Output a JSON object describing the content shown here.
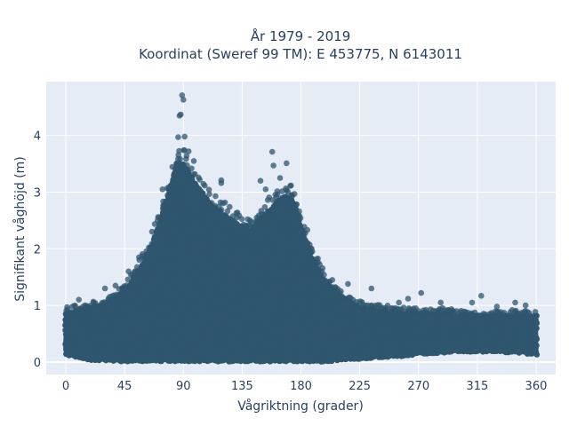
{
  "chart_data": {
    "type": "scatter",
    "title_line1": "År 1979 - 2019",
    "title_line2": "Koordinat (Sweref 99 TM): E 453775, N 6143011",
    "xlabel": "Vågriktning (grader)",
    "ylabel": "Signifikant våghöjd (m)",
    "xlim": [
      -15,
      375
    ],
    "ylim": [
      -0.22,
      4.95
    ],
    "xticks": [
      0,
      45,
      90,
      135,
      180,
      225,
      270,
      315,
      360
    ],
    "yticks": [
      0,
      1,
      2,
      3,
      4
    ],
    "grid": true,
    "marker_color": "#2f566e",
    "plot_background": "#e5ecf6",
    "envelope": {
      "direction": [
        0,
        10,
        20,
        30,
        40,
        50,
        60,
        70,
        80,
        85,
        90,
        95,
        100,
        105,
        110,
        120,
        130,
        140,
        150,
        160,
        165,
        170,
        175,
        180,
        190,
        200,
        210,
        225,
        240,
        255,
        270,
        285,
        300,
        315,
        330,
        345,
        360
      ],
      "lower": [
        0.15,
        0.1,
        0.05,
        0.05,
        0.03,
        0.03,
        0.03,
        0.03,
        0.03,
        0.03,
        0.03,
        0.03,
        0.03,
        0.03,
        0.03,
        0.03,
        0.03,
        0.03,
        0.03,
        0.03,
        0.03,
        0.03,
        0.03,
        0.02,
        0.02,
        0.03,
        0.05,
        0.07,
        0.1,
        0.12,
        0.15,
        0.18,
        0.2,
        0.2,
        0.2,
        0.18,
        0.15
      ],
      "upper": [
        0.85,
        0.9,
        0.95,
        1.0,
        1.15,
        1.4,
        1.75,
        2.3,
        3.1,
        3.5,
        3.5,
        3.3,
        3.1,
        2.95,
        2.8,
        2.6,
        2.45,
        2.3,
        2.55,
        2.75,
        2.9,
        2.9,
        2.8,
        2.4,
        1.75,
        1.35,
        1.15,
        0.95,
        0.9,
        0.85,
        0.85,
        0.85,
        0.8,
        0.8,
        0.8,
        0.8,
        0.8
      ]
    },
    "outliers": [
      {
        "x": 89,
        "y": 4.71
      },
      {
        "x": 90,
        "y": 4.63
      },
      {
        "x": 88,
        "y": 4.37
      },
      {
        "x": 87,
        "y": 4.35
      },
      {
        "x": 86,
        "y": 3.97
      },
      {
        "x": 91,
        "y": 3.98
      },
      {
        "x": 94,
        "y": 3.72
      },
      {
        "x": 98,
        "y": 3.55
      },
      {
        "x": 119,
        "y": 3.21
      },
      {
        "x": 119,
        "y": 3.16
      },
      {
        "x": 158,
        "y": 3.71
      },
      {
        "x": 159,
        "y": 3.47
      },
      {
        "x": 169,
        "y": 3.51
      },
      {
        "x": 164,
        "y": 3.25
      },
      {
        "x": 149,
        "y": 3.2
      },
      {
        "x": 153,
        "y": 3.05
      },
      {
        "x": 173,
        "y": 2.95
      },
      {
        "x": 131,
        "y": 2.55
      },
      {
        "x": 141,
        "y": 2.5
      },
      {
        "x": 196,
        "y": 1.6
      },
      {
        "x": 204,
        "y": 1.45
      },
      {
        "x": 216,
        "y": 1.38
      },
      {
        "x": 234,
        "y": 1.3
      },
      {
        "x": 255,
        "y": 1.05
      },
      {
        "x": 262,
        "y": 1.12
      },
      {
        "x": 272,
        "y": 1.22
      },
      {
        "x": 287,
        "y": 1.05
      },
      {
        "x": 311,
        "y": 1.05
      },
      {
        "x": 318,
        "y": 1.17
      },
      {
        "x": 330,
        "y": 0.98
      },
      {
        "x": 344,
        "y": 1.05
      },
      {
        "x": 352,
        "y": 1.0
      },
      {
        "x": 10,
        "y": 1.1
      },
      {
        "x": 1,
        "y": 0.97
      },
      {
        "x": 30,
        "y": 1.3
      },
      {
        "x": 38,
        "y": 1.35
      },
      {
        "x": 48,
        "y": 1.6
      },
      {
        "x": 56,
        "y": 1.85
      },
      {
        "x": 66,
        "y": 2.3
      },
      {
        "x": 74,
        "y": 3.05
      }
    ]
  }
}
